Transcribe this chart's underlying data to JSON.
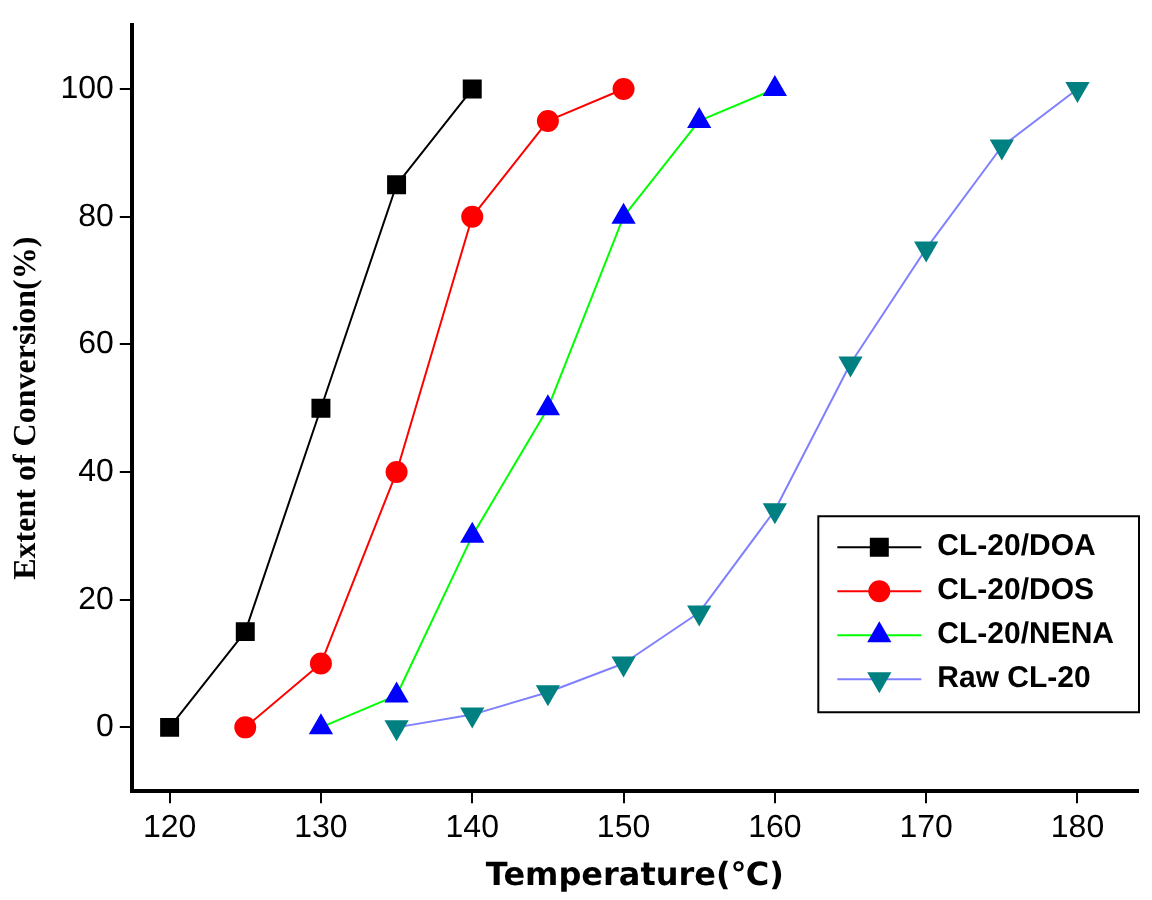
{
  "chart_data": {
    "type": "line",
    "xlabel": "Temperature(℃)",
    "ylabel": "Extent of Conversion(%)",
    "xlim": [
      117.5,
      184
    ],
    "ylim": [
      -10,
      110
    ],
    "xticks": [
      120,
      130,
      140,
      150,
      160,
      170,
      180
    ],
    "yticks": [
      0,
      20,
      40,
      60,
      80,
      100
    ],
    "grid": false,
    "legend": "bottom right",
    "series": [
      {
        "name": "CL-20/DOA",
        "color": "#000000",
        "marker": "square",
        "x": [
          120,
          125,
          130,
          135,
          140
        ],
        "values": [
          0,
          15,
          50,
          85,
          100
        ]
      },
      {
        "name": "CL-20/DOS",
        "color": "#ff0000",
        "marker": "circle",
        "x": [
          125,
          130,
          135,
          140,
          145,
          150
        ],
        "values": [
          0,
          10,
          40,
          80,
          95,
          100
        ]
      },
      {
        "name": "CL-20/NENA",
        "color": "#00ff00",
        "colors": [
          "#0000ff",
          "#0000ff",
          "#0000ff",
          "#0000ff",
          "#0000ff",
          "#0000ff",
          "#0000ff"
        ],
        "marker": "triangle",
        "x": [
          130,
          135,
          140,
          145,
          150,
          155,
          160
        ],
        "values": [
          0,
          5,
          30,
          50,
          80,
          95,
          100
        ]
      },
      {
        "name": "Raw CL-20",
        "color": "#8080ff",
        "colors": [
          "#008080",
          "#008080",
          "#008080",
          "#008080",
          "#008080",
          "#008080",
          "#008080",
          "#008080",
          "#008080",
          "#008080"
        ],
        "marker": "triangle-down",
        "x": [
          135,
          140,
          145,
          150,
          155,
          160,
          165,
          170,
          175,
          180
        ],
        "values": [
          0,
          2,
          5.5,
          10,
          18,
          34,
          57,
          75,
          91,
          100
        ]
      }
    ]
  }
}
